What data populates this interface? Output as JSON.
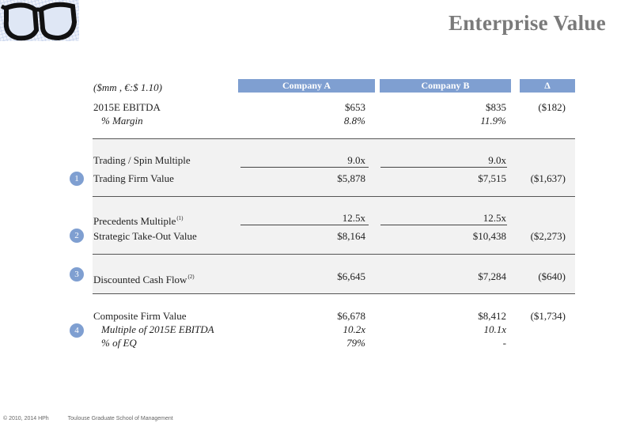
{
  "header": {
    "title": "Enterprise Value",
    "logo_icon": "glasses-logo-icon"
  },
  "table": {
    "units": "($mm , €:$ 1.10)",
    "columns": [
      "Company A",
      "Company B",
      "Δ"
    ],
    "header_color": "#7f9fd1",
    "rows": {
      "ebitda": {
        "label": "2015E EBITDA",
        "a": "$653",
        "b": "$835",
        "delta": "($182)"
      },
      "margin": {
        "label": "% Margin",
        "a": "8.8%",
        "b": "11.9%",
        "delta": ""
      },
      "trading_mult": {
        "label": "Trading / Spin Multiple",
        "a": "9.0x",
        "b": "9.0x",
        "delta": ""
      },
      "trading_fv": {
        "label": "Trading Firm Value",
        "a": "$5,878",
        "b": "$7,515",
        "delta": "($1,637)",
        "badge": "1"
      },
      "prec_mult": {
        "label": "Precedents Multiple",
        "note": "(1)",
        "a": "12.5x",
        "b": "12.5x",
        "delta": ""
      },
      "strategic": {
        "label": "Strategic Take-Out Value",
        "a": "$8,164",
        "b": "$10,438",
        "delta": "($2,273)",
        "badge": "2"
      },
      "dcf": {
        "label": "Discounted Cash Flow",
        "note": "(2)",
        "a": "$6,645",
        "b": "$7,284",
        "delta": "($640)",
        "badge": "3"
      },
      "composite": {
        "label": "Composite Firm Value",
        "a": "$6,678",
        "b": "$8,412",
        "delta": "($1,734)"
      },
      "comp_mult": {
        "label": "Multiple of 2015E EBITDA",
        "a": "10.2x",
        "b": "10.1x",
        "delta": "",
        "badge": "4"
      },
      "pct_eq": {
        "label": "% of EQ",
        "a": "79%",
        "b": "-",
        "delta": ""
      }
    }
  },
  "footer": {
    "copyright": "© 2010, 2014 HPh",
    "school": "Toulouse Graduate School of Management"
  }
}
